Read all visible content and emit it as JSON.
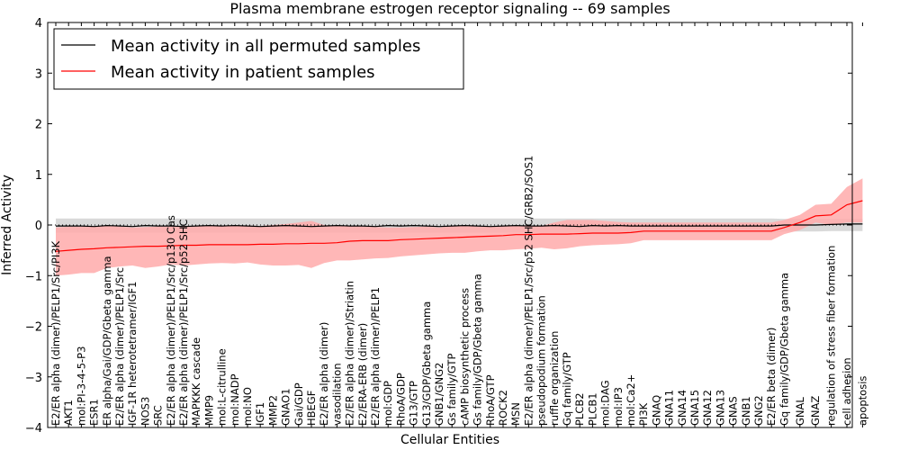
{
  "chart_data": {
    "type": "line",
    "title": "Plasma membrane estrogen receptor signaling -- 69 samples",
    "xlabel": "Cellular Entities",
    "ylabel": "Inferred Activity",
    "ylim": [
      -4,
      4
    ],
    "yticks": [
      -4,
      -3,
      -2,
      -1,
      0,
      1,
      2,
      3,
      4
    ],
    "grid": false,
    "legend_position": "top-left",
    "categories": [
      "E2/ER alpha (dimer)/PELP1/Src/PI3K",
      "AKT1",
      "mol:PI-3-4-5-P3",
      "ESR1",
      "ER alpha/Gai/GDP/Gbeta gamma",
      "E2/ER alpha (dimer)/PELP1/Src",
      "IGF-1R heterotetramer/IGF1",
      "NOS3",
      "SRC",
      "E2/ER alpha (dimer)/PELP1/Src/p130 Cas",
      "E2/ER alpha (dimer)/PELP1/Src/p52 SHC",
      "MAPKKK cascade",
      "MMP9",
      "mol:L-citrulline",
      "mol:NADP",
      "mol:NO",
      "IGF1",
      "MMP2",
      "GNAO1",
      "Gai/GDP",
      "HBEGF",
      "E2/ER alpha (dimer)",
      "vasodilation",
      "E2/ER alpha (dimer)/Striatin",
      "E2/ERA-ERB (dimer)",
      "E2/ER alpha (dimer)/PELP1",
      "mol:GDP",
      "RhoA/GDP",
      "G13/GTP",
      "G13/GDP/Gbeta gamma",
      "GNB1/GNG2",
      "Gs family/GTP",
      "cAMP biosynthetic process",
      "Gs family/GDP/Gbeta gamma",
      "RhoA/GTP",
      "ROCK2",
      "MSN",
      "E2/ER alpha (dimer)/PELP1/Src/p52 SHC/GRB2/SOS1",
      "pseudopodium formation",
      "ruffle organization",
      "Gq family/GTP",
      "PLCB2",
      "PLCB1",
      "mol:DAG",
      "mol:IP3",
      "mol:Ca2+",
      "PI3K",
      "GNAQ",
      "GNA11",
      "GNA14",
      "GNA15",
      "GNA12",
      "GNA13",
      "GNAS",
      "GNB1",
      "GNG2",
      "E2/ER beta (dimer)",
      "Gq family/GDP/Gbeta gamma",
      "GNAL",
      "GNAZ",
      "regulation of stress fiber formation",
      "cell adhesion",
      "apoptosis"
    ],
    "series": [
      {
        "name": "Mean activity in all permuted samples",
        "color": "#000000",
        "values": [
          -0.02,
          -0.02,
          -0.02,
          -0.03,
          -0.01,
          -0.02,
          -0.03,
          -0.01,
          -0.02,
          -0.02,
          -0.03,
          -0.02,
          -0.01,
          -0.02,
          -0.01,
          -0.02,
          -0.03,
          -0.02,
          -0.01,
          -0.02,
          -0.03,
          -0.02,
          -0.01,
          -0.02,
          -0.02,
          -0.03,
          -0.01,
          -0.02,
          -0.01,
          -0.02,
          -0.03,
          -0.02,
          -0.01,
          -0.02,
          -0.03,
          -0.02,
          -0.01,
          -0.02,
          -0.02,
          -0.01,
          -0.02,
          -0.03,
          -0.01,
          -0.02,
          -0.01,
          -0.02,
          -0.02,
          -0.02,
          -0.02,
          -0.02,
          -0.02,
          -0.02,
          -0.02,
          -0.02,
          -0.02,
          -0.02,
          -0.02,
          0.0,
          0.0,
          0.0,
          0.01,
          0.02,
          0.02
        ],
        "band_lower": [
          -0.15,
          -0.15,
          -0.15,
          -0.15,
          -0.15,
          -0.15,
          -0.15,
          -0.15,
          -0.15,
          -0.15,
          -0.15,
          -0.15,
          -0.15,
          -0.15,
          -0.15,
          -0.15,
          -0.15,
          -0.15,
          -0.15,
          -0.15,
          -0.15,
          -0.15,
          -0.15,
          -0.15,
          -0.15,
          -0.15,
          -0.15,
          -0.15,
          -0.15,
          -0.15,
          -0.15,
          -0.15,
          -0.15,
          -0.15,
          -0.15,
          -0.15,
          -0.15,
          -0.15,
          -0.15,
          -0.15,
          -0.15,
          -0.15,
          -0.15,
          -0.15,
          -0.15,
          -0.15,
          -0.15,
          -0.15,
          -0.15,
          -0.15,
          -0.15,
          -0.15,
          -0.15,
          -0.15,
          -0.15,
          -0.15,
          -0.15,
          -0.13,
          -0.13,
          -0.13,
          -0.12,
          -0.12,
          -0.12
        ],
        "band_upper": [
          0.13,
          0.13,
          0.13,
          0.13,
          0.13,
          0.13,
          0.13,
          0.13,
          0.13,
          0.13,
          0.13,
          0.13,
          0.13,
          0.13,
          0.13,
          0.13,
          0.13,
          0.13,
          0.13,
          0.13,
          0.13,
          0.13,
          0.13,
          0.13,
          0.13,
          0.13,
          0.13,
          0.13,
          0.13,
          0.13,
          0.13,
          0.13,
          0.13,
          0.13,
          0.13,
          0.13,
          0.13,
          0.13,
          0.13,
          0.13,
          0.13,
          0.13,
          0.13,
          0.13,
          0.13,
          0.13,
          0.13,
          0.13,
          0.13,
          0.13,
          0.13,
          0.13,
          0.13,
          0.13,
          0.13,
          0.13,
          0.13,
          0.12,
          0.12,
          0.12,
          0.12,
          0.12,
          0.12
        ]
      },
      {
        "name": "Mean activity in patient samples",
        "color": "#ff0000",
        "fill_color": "#ffaaaa",
        "values": [
          -0.52,
          -0.5,
          -0.48,
          -0.47,
          -0.45,
          -0.44,
          -0.43,
          -0.42,
          -0.42,
          -0.41,
          -0.4,
          -0.4,
          -0.39,
          -0.39,
          -0.39,
          -0.39,
          -0.38,
          -0.38,
          -0.37,
          -0.37,
          -0.36,
          -0.36,
          -0.35,
          -0.32,
          -0.31,
          -0.31,
          -0.31,
          -0.29,
          -0.28,
          -0.27,
          -0.26,
          -0.25,
          -0.24,
          -0.23,
          -0.22,
          -0.21,
          -0.19,
          -0.19,
          -0.18,
          -0.18,
          -0.18,
          -0.17,
          -0.16,
          -0.16,
          -0.16,
          -0.15,
          -0.12,
          -0.12,
          -0.12,
          -0.12,
          -0.12,
          -0.12,
          -0.12,
          -0.12,
          -0.12,
          -0.12,
          -0.12,
          -0.05,
          0.05,
          0.18,
          0.2,
          0.4,
          0.48
        ],
        "band_lower": [
          -1.0,
          -0.98,
          -0.95,
          -0.95,
          -0.85,
          -0.82,
          -0.8,
          -0.85,
          -0.82,
          -0.78,
          -0.8,
          -0.78,
          -0.76,
          -0.75,
          -0.76,
          -0.74,
          -0.78,
          -0.8,
          -0.8,
          -0.79,
          -0.85,
          -0.75,
          -0.7,
          -0.7,
          -0.68,
          -0.66,
          -0.65,
          -0.62,
          -0.6,
          -0.58,
          -0.56,
          -0.55,
          -0.55,
          -0.52,
          -0.5,
          -0.5,
          -0.48,
          -0.47,
          -0.45,
          -0.48,
          -0.46,
          -0.42,
          -0.4,
          -0.39,
          -0.38,
          -0.36,
          -0.3,
          -0.3,
          -0.3,
          -0.3,
          -0.3,
          -0.3,
          -0.3,
          -0.3,
          -0.3,
          -0.3,
          -0.3,
          -0.18,
          -0.1,
          0.05,
          0.0,
          0.05,
          0.05
        ],
        "band_upper": [
          -0.05,
          -0.03,
          -0.03,
          -0.02,
          -0.02,
          -0.03,
          -0.05,
          -0.04,
          -0.03,
          -0.03,
          -0.02,
          -0.02,
          -0.02,
          -0.01,
          -0.02,
          -0.01,
          -0.02,
          0.0,
          0.02,
          0.05,
          0.08,
          0.0,
          -0.02,
          -0.02,
          -0.03,
          -0.04,
          -0.05,
          -0.05,
          -0.04,
          -0.03,
          -0.05,
          -0.02,
          -0.02,
          -0.03,
          -0.03,
          -0.02,
          -0.02,
          -0.01,
          -0.02,
          0.05,
          0.1,
          0.1,
          0.1,
          0.08,
          0.06,
          0.05,
          0.05,
          0.05,
          0.05,
          0.05,
          0.05,
          0.05,
          0.05,
          0.05,
          0.05,
          0.05,
          0.05,
          0.1,
          0.2,
          0.4,
          0.42,
          0.75,
          0.92
        ]
      }
    ]
  }
}
